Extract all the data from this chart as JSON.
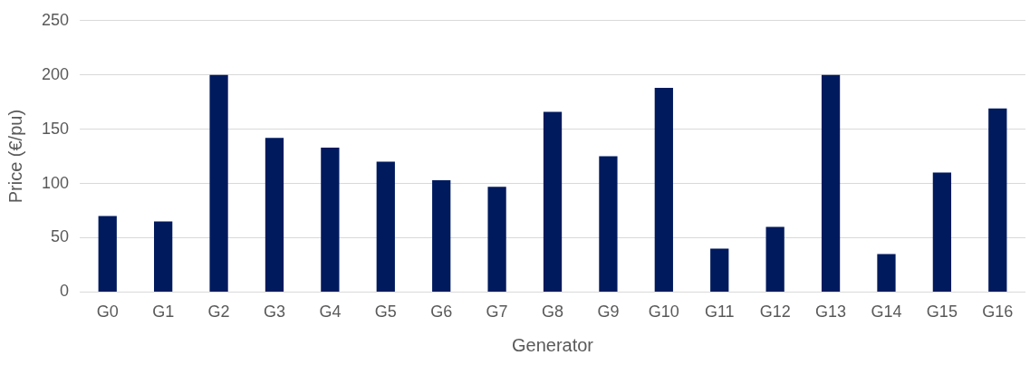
{
  "chart_data": {
    "type": "bar",
    "xlabel": "Generator",
    "ylabel": "Price (€/pu)",
    "categories": [
      "G0",
      "G1",
      "G2",
      "G3",
      "G4",
      "G5",
      "G6",
      "G7",
      "G8",
      "G9",
      "G10",
      "G11",
      "G12",
      "G13",
      "G14",
      "G15",
      "G16"
    ],
    "values": [
      70,
      65,
      200,
      142,
      133,
      120,
      103,
      97,
      166,
      125,
      188,
      40,
      60,
      200,
      35,
      110,
      169
    ],
    "color": "#001a5e",
    "ylim": [
      0,
      250
    ],
    "yticks": [
      0,
      50,
      100,
      150,
      200,
      250
    ],
    "grid": "y",
    "legend": false
  }
}
